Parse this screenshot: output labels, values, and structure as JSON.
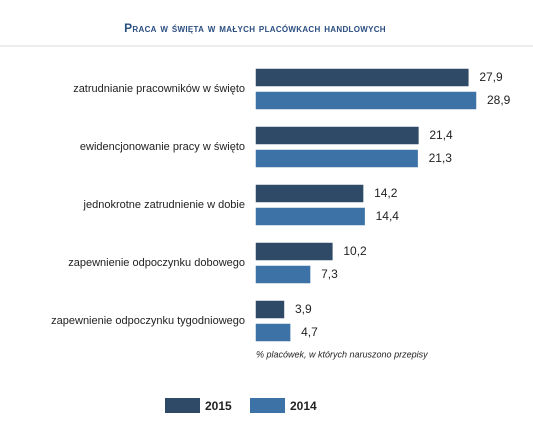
{
  "chart_data": {
    "type": "bar",
    "orientation": "horizontal",
    "title": "Praca w święta w małych placówkach handlowych",
    "categories": [
      "zatrudnianie pracowników w święto",
      "ewidencjonowanie pracy w święto",
      "jednokrotne zatrudnienie w dobie",
      "zapewnienie odpoczynku dobowego",
      "zapewnienie odpoczynku tygodniowego"
    ],
    "series": [
      {
        "name": "2015",
        "color": "#2f4a66",
        "values": [
          27.9,
          21.4,
          14.2,
          10.2,
          3.9
        ],
        "value_labels": [
          "27,9",
          "21,4",
          "14,2",
          "10,2",
          "3,9"
        ]
      },
      {
        "name": "2014",
        "color": "#3d72a6",
        "values": [
          28.9,
          21.3,
          14.4,
          7.3,
          4.7
        ],
        "value_labels": [
          "28,9",
          "21,3",
          "14,4",
          "7,3",
          "4,7"
        ]
      }
    ],
    "annotation": "% placówek, w których naruszono przepisy",
    "legend": "bottom"
  }
}
